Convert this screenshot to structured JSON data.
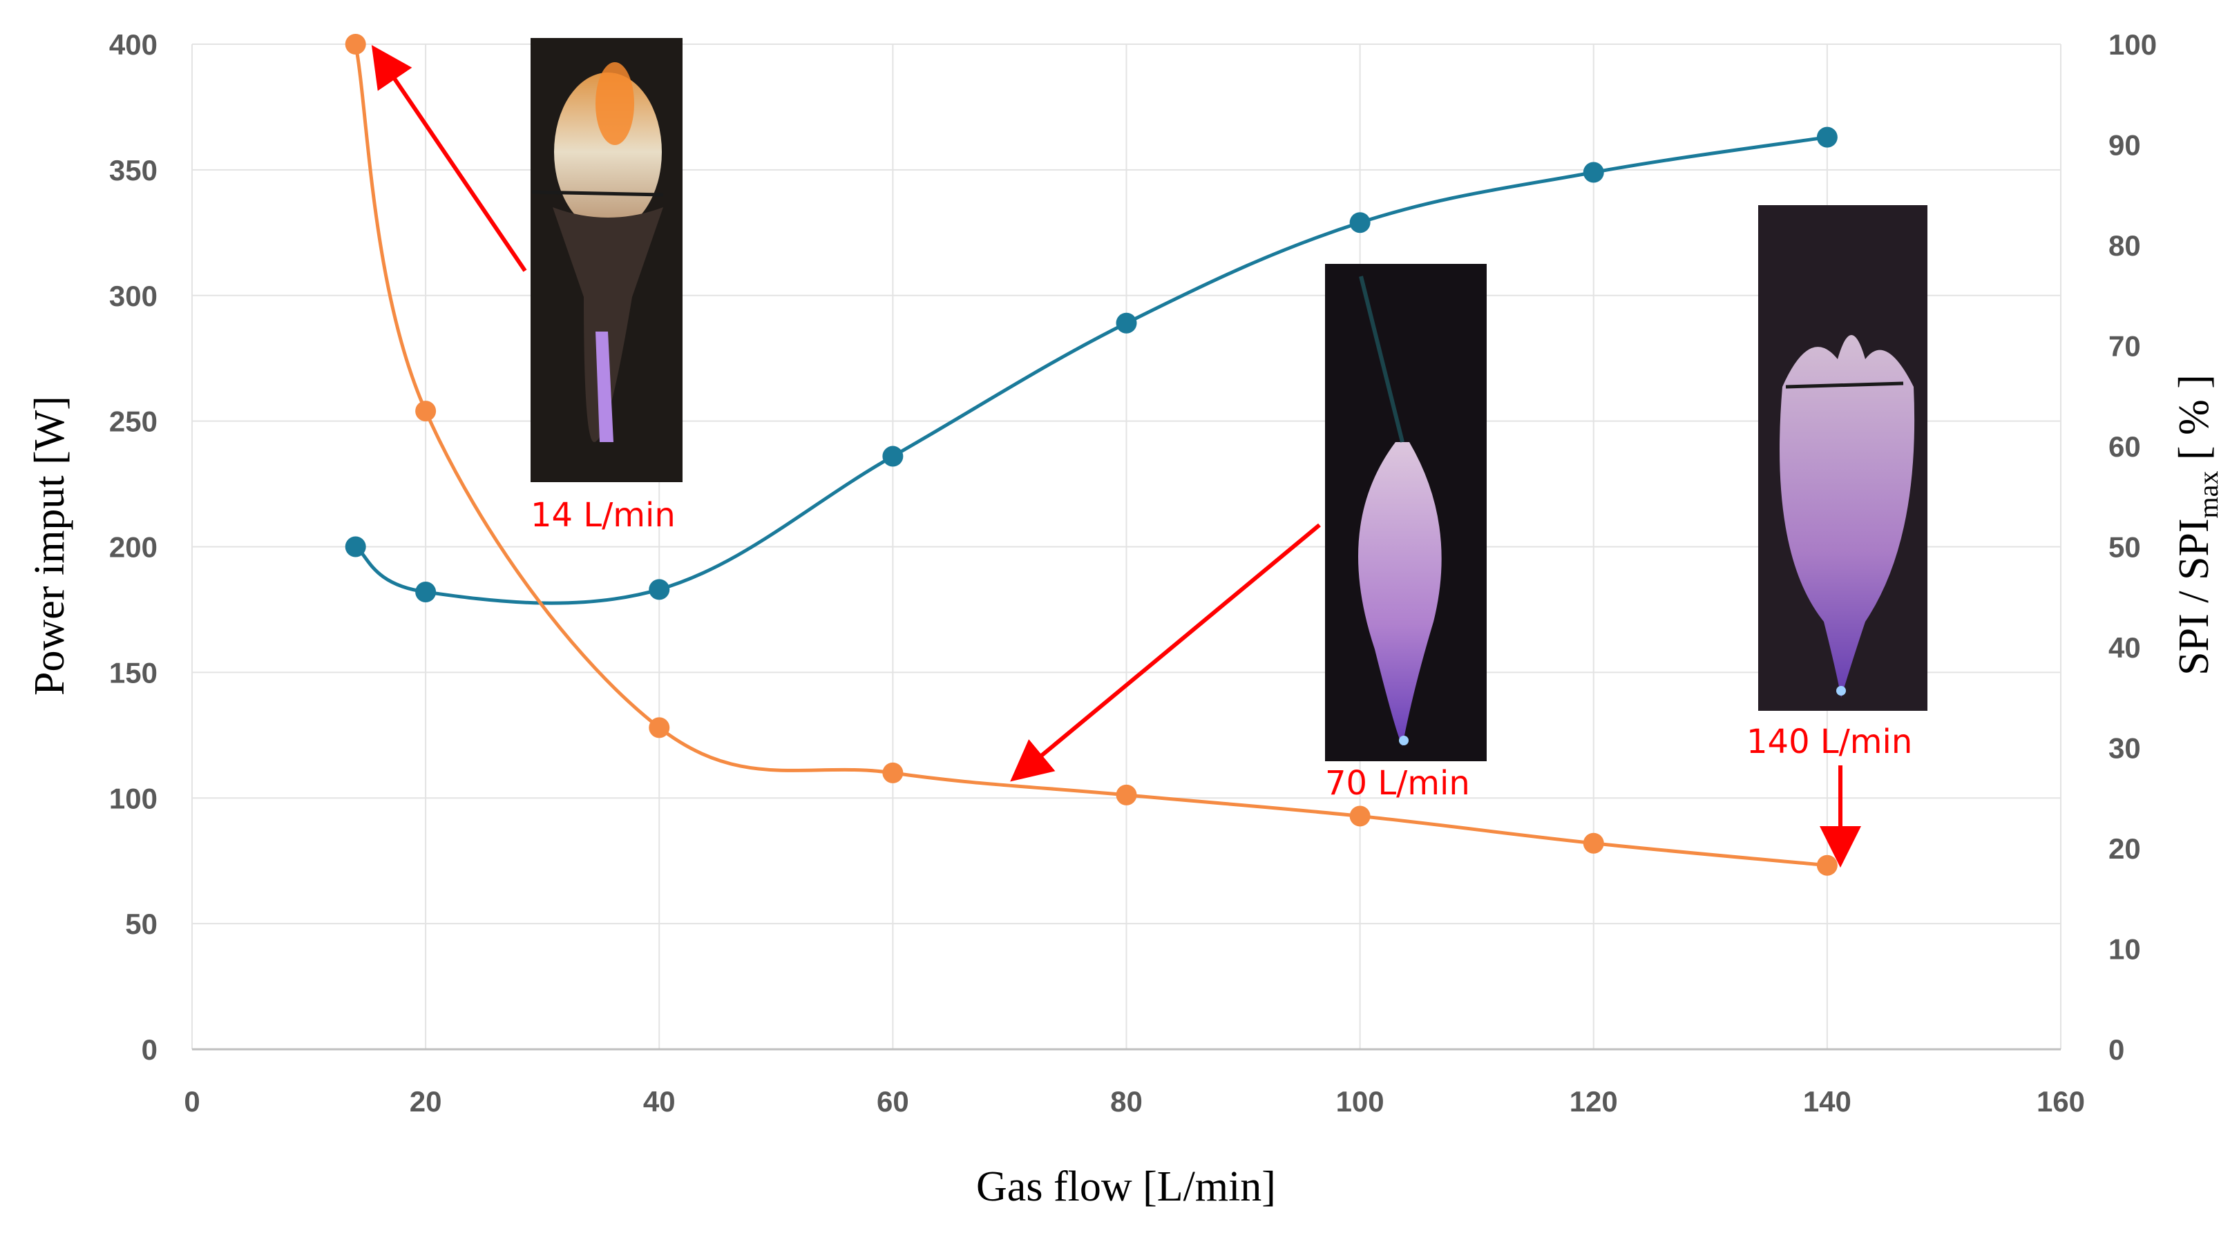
{
  "chart_data": {
    "type": "line",
    "title": "",
    "xlabel": "Gas flow [L/min]",
    "ylabel": "Power imput [W]",
    "y2label_main": "SPI / SPI",
    "y2label_sub": "max",
    "y2label_tail": " [ % ]",
    "xlim": [
      0,
      160
    ],
    "ylim": [
      0,
      400
    ],
    "y2lim": [
      0,
      100
    ],
    "x_ticks": [
      "0",
      "20",
      "40",
      "60",
      "80",
      "100",
      "120",
      "140",
      "160"
    ],
    "y_ticks": [
      "0",
      "50",
      "100",
      "150",
      "200",
      "250",
      "300",
      "350",
      "400"
    ],
    "y2_ticks": [
      "0",
      "10",
      "20",
      "30",
      "40",
      "50",
      "60",
      "70",
      "80",
      "90",
      "100"
    ],
    "grid": true,
    "series": [
      {
        "axis": "left",
        "color": "#1a7a9a",
        "x": [
          14,
          20,
          40,
          60,
          80,
          100,
          120,
          140
        ],
        "y": [
          200,
          182,
          183,
          236,
          289,
          329,
          349,
          363
        ]
      },
      {
        "axis": "right",
        "color": "#f58a42",
        "x": [
          14,
          20,
          40,
          60,
          80,
          100,
          120,
          140
        ],
        "y": [
          100,
          63.5,
          32,
          27.5,
          25.3,
          23.2,
          20.5,
          18.3
        ]
      }
    ],
    "annotations": [
      {
        "text": "14 L/min",
        "target_x": 15,
        "target_y": 390,
        "color": "#ff0000"
      },
      {
        "text": "70 L/min",
        "target_x": 70,
        "target_y": 108,
        "color": "#ff0000"
      },
      {
        "text": "140 L/min",
        "target_x": 140,
        "target_y": 72,
        "color": "#ff0000"
      }
    ]
  }
}
